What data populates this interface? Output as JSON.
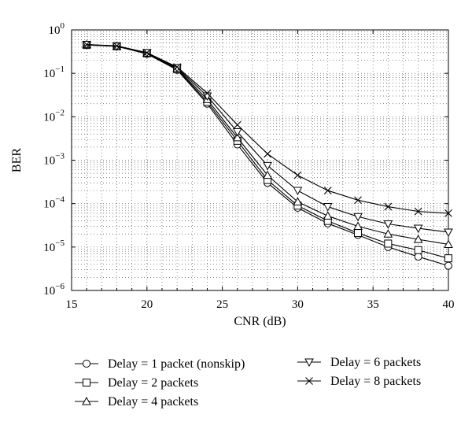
{
  "chart_data": {
    "type": "line",
    "xlabel": "CNR (dB)",
    "ylabel": "BER",
    "xlim": [
      15,
      40
    ],
    "ylim": [
      1e-06,
      1
    ],
    "yscale": "log",
    "grid": true,
    "legend_position": "bottom",
    "x_ticks": [
      {
        "value": 15,
        "label": "15"
      },
      {
        "value": 20,
        "label": "20"
      },
      {
        "value": 25,
        "label": "25"
      },
      {
        "value": 30,
        "label": "30"
      },
      {
        "value": 35,
        "label": "35"
      },
      {
        "value": 40,
        "label": "40"
      }
    ],
    "y_ticks": [
      {
        "value": 1,
        "base": "10",
        "exp": "0"
      },
      {
        "value": 0.1,
        "base": "10",
        "exp": "−1"
      },
      {
        "value": 0.01,
        "base": "10",
        "exp": "−2"
      },
      {
        "value": 0.001,
        "base": "10",
        "exp": "−3"
      },
      {
        "value": 0.0001,
        "base": "10",
        "exp": "−4"
      },
      {
        "value": 1e-05,
        "base": "10",
        "exp": "−5"
      },
      {
        "value": 1e-06,
        "base": "10",
        "exp": "−6"
      }
    ],
    "x": [
      16,
      18,
      20,
      22,
      24,
      26,
      28,
      30,
      32,
      34,
      36,
      38,
      40
    ],
    "series": [
      {
        "name": "Delay = 1 packet (nonskip)",
        "marker": "circle",
        "values": [
          0.45,
          0.42,
          0.28,
          0.12,
          0.02,
          0.0023,
          0.0003,
          8e-05,
          3.5e-05,
          1.9e-05,
          1e-05,
          6e-06,
          3.7e-06
        ]
      },
      {
        "name": "Delay = 2 packets",
        "marker": "square",
        "values": [
          0.45,
          0.42,
          0.29,
          0.125,
          0.022,
          0.0028,
          0.00035,
          9e-05,
          4e-05,
          2.1e-05,
          1.2e-05,
          8.5e-06,
          5.5e-06
        ]
      },
      {
        "name": "Delay = 4 packets",
        "marker": "triangle-up",
        "values": [
          0.46,
          0.42,
          0.29,
          0.13,
          0.025,
          0.0033,
          0.00045,
          0.00011,
          5.2e-05,
          3e-05,
          2e-05,
          1.5e-05,
          1.15e-05
        ]
      },
      {
        "name": "Delay = 6 packets",
        "marker": "triangle-down",
        "values": [
          0.46,
          0.42,
          0.3,
          0.135,
          0.03,
          0.0045,
          0.00075,
          0.0002,
          8.5e-05,
          5e-05,
          3.4e-05,
          2.7e-05,
          2.2e-05
        ]
      },
      {
        "name": "Delay = 8 packets",
        "marker": "x",
        "values": [
          0.46,
          0.43,
          0.3,
          0.14,
          0.035,
          0.0065,
          0.0014,
          0.00045,
          0.0002,
          0.00012,
          8.5e-05,
          6.6e-05,
          6e-05
        ]
      }
    ]
  }
}
